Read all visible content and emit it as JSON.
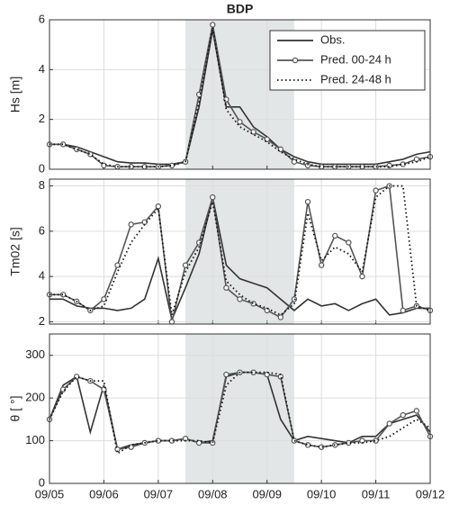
{
  "chart_data": [
    {
      "type": "line",
      "title": "BDP",
      "ylabel": "Hs [m]",
      "grid": true,
      "legend": "upper right",
      "shade": [
        7.5,
        9.5
      ],
      "xlim": [
        5,
        12
      ],
      "xticks": [
        5,
        6,
        7,
        8,
        9,
        10,
        11,
        12
      ],
      "ylim": [
        0,
        6
      ],
      "yticks": [
        0,
        2,
        4,
        6
      ],
      "x": [
        5,
        5.25,
        5.5,
        5.75,
        6,
        6.25,
        6.5,
        6.75,
        7,
        7.25,
        7.5,
        7.75,
        8,
        8.25,
        8.5,
        8.75,
        9,
        9.25,
        9.5,
        9.75,
        10,
        10.25,
        10.5,
        10.75,
        11,
        11.25,
        11.5,
        11.75,
        12
      ],
      "series": [
        {
          "name": "Obs.",
          "color": "#333333",
          "dash": "solid",
          "marker": "none",
          "values": [
            1.0,
            1.0,
            0.9,
            0.7,
            0.5,
            0.3,
            0.25,
            0.25,
            0.2,
            0.2,
            0.3,
            2.5,
            5.6,
            2.5,
            2.5,
            1.7,
            1.3,
            0.8,
            0.5,
            0.3,
            0.2,
            0.2,
            0.2,
            0.2,
            0.2,
            0.3,
            0.4,
            0.6,
            0.7
          ]
        },
        {
          "name": "Pred. 00-24 h",
          "color": "#555555",
          "dash": "solid",
          "marker": "circle",
          "values": [
            1.0,
            1.0,
            0.8,
            0.6,
            0.15,
            0.1,
            0.1,
            0.1,
            0.1,
            0.15,
            0.3,
            3.0,
            5.8,
            2.8,
            1.9,
            1.5,
            1.2,
            0.8,
            0.3,
            0.15,
            0.1,
            0.1,
            0.1,
            0.1,
            0.1,
            0.15,
            0.2,
            0.4,
            0.5
          ]
        },
        {
          "name": "Pred. 24-48 h",
          "color": "#111111",
          "dash": "dotted",
          "marker": "none",
          "values": [
            1.0,
            1.0,
            0.8,
            0.6,
            0.2,
            0.1,
            0.1,
            0.1,
            0.1,
            0.15,
            0.3,
            2.7,
            5.7,
            2.4,
            1.7,
            1.4,
            1.1,
            0.7,
            0.4,
            0.2,
            0.1,
            0.1,
            0.1,
            0.1,
            0.1,
            0.1,
            0.2,
            0.3,
            0.5
          ]
        }
      ]
    },
    {
      "type": "line",
      "ylabel": "Tm02 [s]",
      "grid": true,
      "shade": [
        7.5,
        9.5
      ],
      "xlim": [
        5,
        12
      ],
      "xticks": [
        5,
        6,
        7,
        8,
        9,
        10,
        11,
        12
      ],
      "ylim": [
        1.9,
        8.3
      ],
      "yticks": [
        2,
        4,
        6,
        8
      ],
      "x": [
        5,
        5.25,
        5.5,
        5.75,
        6,
        6.25,
        6.5,
        6.75,
        7,
        7.25,
        7.5,
        7.75,
        8,
        8.25,
        8.5,
        8.75,
        9,
        9.25,
        9.5,
        9.75,
        10,
        10.25,
        10.5,
        10.75,
        11,
        11.25,
        11.5,
        11.75,
        12
      ],
      "series": [
        {
          "color": "#333333",
          "dash": "solid",
          "marker": "none",
          "values": [
            3.0,
            3.0,
            2.7,
            2.6,
            2.6,
            2.5,
            2.6,
            3.0,
            4.8,
            2.1,
            3.5,
            5.0,
            7.5,
            4.5,
            3.9,
            3.7,
            3.5,
            3.0,
            2.5,
            3.0,
            2.7,
            2.8,
            2.5,
            2.8,
            3.0,
            2.3,
            2.4,
            2.6,
            2.6
          ]
        },
        {
          "color": "#555555",
          "dash": "solid",
          "marker": "circle",
          "values": [
            3.2,
            3.2,
            2.9,
            2.5,
            3.0,
            4.5,
            6.3,
            6.4,
            7.1,
            2.0,
            4.5,
            5.5,
            7.5,
            3.5,
            3.0,
            2.8,
            2.5,
            2.2,
            3.0,
            7.3,
            4.5,
            5.8,
            5.5,
            4.0,
            7.8,
            8.0,
            2.5,
            2.7,
            2.5
          ]
        },
        {
          "color": "#111111",
          "dash": "dotted",
          "marker": "none",
          "values": [
            3.2,
            3.2,
            2.9,
            2.5,
            2.7,
            4.2,
            5.5,
            6.3,
            7.0,
            2.3,
            4.2,
            5.3,
            7.3,
            3.8,
            3.2,
            2.8,
            2.6,
            2.3,
            2.8,
            6.8,
            4.7,
            5.3,
            5.0,
            4.2,
            7.5,
            8.0,
            8.0,
            2.7,
            2.5
          ]
        }
      ]
    },
    {
      "type": "line",
      "ylabel": "θ [ °]",
      "grid": true,
      "shade": [
        7.5,
        9.5
      ],
      "xlim": [
        5,
        12
      ],
      "xticks": [
        {
          "value": 5,
          "label": "09/05"
        },
        {
          "value": 6,
          "label": "09/06"
        },
        {
          "value": 7,
          "label": "09/07"
        },
        {
          "value": 8,
          "label": "09/08"
        },
        {
          "value": 9,
          "label": "09/09"
        },
        {
          "value": 10,
          "label": "09/10"
        },
        {
          "value": 11,
          "label": "09/11"
        },
        {
          "value": 12,
          "label": "09/12"
        }
      ],
      "ylim": [
        0,
        350
      ],
      "yticks": [
        0,
        100,
        200,
        300
      ],
      "x": [
        5,
        5.25,
        5.5,
        5.75,
        6,
        6.25,
        6.5,
        6.75,
        7,
        7.25,
        7.5,
        7.75,
        8,
        8.25,
        8.5,
        8.75,
        9,
        9.25,
        9.5,
        9.75,
        10,
        10.25,
        10.5,
        10.75,
        11,
        11.25,
        11.5,
        11.75,
        12
      ],
      "series": [
        {
          "color": "#333333",
          "dash": "solid",
          "marker": "none",
          "values": [
            150,
            230,
            250,
            120,
            230,
            80,
            90,
            95,
            100,
            100,
            105,
            95,
            100,
            250,
            260,
            260,
            255,
            150,
            100,
            110,
            105,
            100,
            95,
            110,
            110,
            140,
            150,
            160,
            120
          ]
        },
        {
          "color": "#555555",
          "dash": "solid",
          "marker": "circle",
          "values": [
            150,
            220,
            250,
            240,
            220,
            80,
            85,
            95,
            100,
            100,
            105,
            95,
            95,
            255,
            260,
            260,
            255,
            250,
            100,
            90,
            85,
            90,
            95,
            100,
            100,
            140,
            160,
            170,
            110
          ]
        },
        {
          "color": "#111111",
          "dash": "dotted",
          "marker": "none",
          "values": [
            150,
            215,
            250,
            240,
            240,
            70,
            90,
            95,
            100,
            100,
            100,
            100,
            95,
            230,
            260,
            260,
            260,
            255,
            100,
            90,
            85,
            90,
            95,
            95,
            100,
            110,
            130,
            150,
            130
          ]
        }
      ]
    }
  ]
}
